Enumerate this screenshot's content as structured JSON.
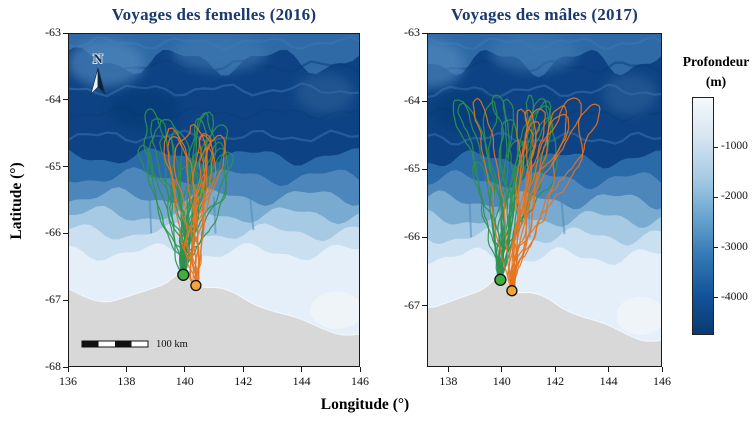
{
  "figure": {
    "type": "double-panel bathymetric map with animal voyage tracks",
    "background": "#ffffff"
  },
  "chart_data": {
    "type": "map",
    "title_color": "#1a3a6e",
    "axes": {
      "x_label": "Longitude (°)",
      "y_label": "Latitude (°)"
    },
    "north_label": "N",
    "panels": [
      {
        "id": "females-2016",
        "title": "Voyages des femelles (2016)",
        "lon_min": 136,
        "lon_max": 146,
        "lat_min": -68,
        "lat_max": -63,
        "x_ticks": [
          "136",
          "138",
          "140",
          "142",
          "144",
          "146"
        ],
        "y_ticks": [
          "-63",
          "-64",
          "-65",
          "-66",
          "-67",
          "-68"
        ],
        "north_arrow": true,
        "scale_bar": true,
        "scale_bar_label": "100 km",
        "track_groups": [
          {
            "name": "green",
            "count": 15,
            "seed": 11,
            "lat_reach": -64.25,
            "lon_spread": 1.9,
            "east_bias": 0.3
          },
          {
            "name": "orange",
            "count": 7,
            "seed": 23,
            "lat_reach": -64.3,
            "lon_spread": 2.3,
            "east_bias": 1.3
          }
        ]
      },
      {
        "id": "males-2017",
        "title": "Voyages des mâles (2017)",
        "lon_min": 137.2,
        "lon_max": 146,
        "lat_min": -67.9,
        "lat_max": -63,
        "x_ticks": [
          "138",
          "140",
          "142",
          "144",
          "146"
        ],
        "y_ticks": [
          "-63",
          "-64",
          "-65",
          "-66",
          "-67"
        ],
        "north_arrow": false,
        "scale_bar": false,
        "scale_bar_label": "",
        "track_groups": [
          {
            "name": "green",
            "count": 13,
            "seed": 31,
            "lat_reach": -63.95,
            "lon_spread": 1.8,
            "east_bias": 0.4
          },
          {
            "name": "orange",
            "count": 9,
            "seed": 47,
            "lat_reach": -64.0,
            "lon_spread": 2.4,
            "east_bias": 1.5
          }
        ]
      }
    ],
    "colony": {
      "green": [
        139.95,
        -66.62
      ],
      "orange": [
        140.38,
        -66.78
      ]
    },
    "colors": {
      "track_green": "#2e9150",
      "track_orange": "#e4731f",
      "colony_green": "#3fae3f",
      "colony_orange": "#f0a43c",
      "land": "#d8d8d8"
    },
    "coast": [
      [
        135.5,
        -66.7
      ],
      [
        136.5,
        -66.95
      ],
      [
        137.3,
        -67.05
      ],
      [
        138.0,
        -66.95
      ],
      [
        138.7,
        -66.85
      ],
      [
        139.35,
        -66.76
      ],
      [
        139.8,
        -66.58
      ],
      [
        140.15,
        -66.62
      ],
      [
        140.5,
        -66.82
      ],
      [
        141.1,
        -66.8
      ],
      [
        141.7,
        -66.88
      ],
      [
        142.3,
        -67.06
      ],
      [
        143.1,
        -67.18
      ],
      [
        143.9,
        -67.26
      ],
      [
        144.7,
        -67.43
      ],
      [
        145.5,
        -67.55
      ],
      [
        146.6,
        -67.45
      ]
    ],
    "bathymetry": {
      "top_color": "#2f6aa6",
      "bands": [
        {
          "lat": -63.42,
          "color": "#0d4384"
        },
        {
          "lat": -64.85,
          "color": "#2b6aa9"
        },
        {
          "lat": -65.15,
          "color": "#4d86ba"
        },
        {
          "lat": -65.45,
          "color": "#79abd1"
        },
        {
          "lat": -65.72,
          "color": "#a6cae4"
        },
        {
          "lat": -65.98,
          "color": "#cadff0"
        },
        {
          "lat": -66.28,
          "color": "#e4eff9"
        }
      ],
      "streak_colors": [
        "#3c78b4",
        "#0a3c77"
      ],
      "canyon_color": "#4a85bb",
      "canyons": [
        [
          139.9,
          -65.35,
          140.0,
          -66.05
        ],
        [
          141.0,
          -65.45,
          141.05,
          -66.0
        ],
        [
          142.2,
          -65.3,
          142.35,
          -65.95
        ],
        [
          138.8,
          -65.5,
          138.85,
          -66.0
        ]
      ],
      "highlights": [
        {
          "lon": 137.3,
          "lat": -63.45,
          "rlon": 1.3,
          "rlat": 0.35,
          "color": "#4f87bb",
          "opacity": 0.65
        },
        {
          "lon": 141.2,
          "lat": -63.3,
          "rlon": 1.6,
          "rlat": 0.28,
          "color": "#3e7ab2",
          "opacity": 0.55
        },
        {
          "lon": 144.8,
          "lat": -63.9,
          "rlon": 1.0,
          "rlat": 0.3,
          "color": "#35699f",
          "opacity": 0.45
        },
        {
          "lon": 138.6,
          "lat": -64.15,
          "rlon": 1.2,
          "rlat": 0.3,
          "color": "#0a3a70",
          "opacity": 0.5
        }
      ],
      "ice_patch": {
        "lon": 145.2,
        "lat": -67.15,
        "rlon": 0.9,
        "rlat": 0.28,
        "color": "#eff4f8",
        "opacity": 0.9
      }
    },
    "colorbar": {
      "title_line1": "Profondeur",
      "title_line2": "(m)",
      "ticks": [
        "-1000",
        "-2000",
        "-3000",
        "-4000"
      ],
      "domain": [
        0,
        -4700
      ],
      "gradient": [
        "#f4f9fd",
        "#d5e5f2",
        "#a8cce4",
        "#6aa5cf",
        "#3579b5",
        "#13549b",
        "#0a3a70"
      ]
    }
  }
}
